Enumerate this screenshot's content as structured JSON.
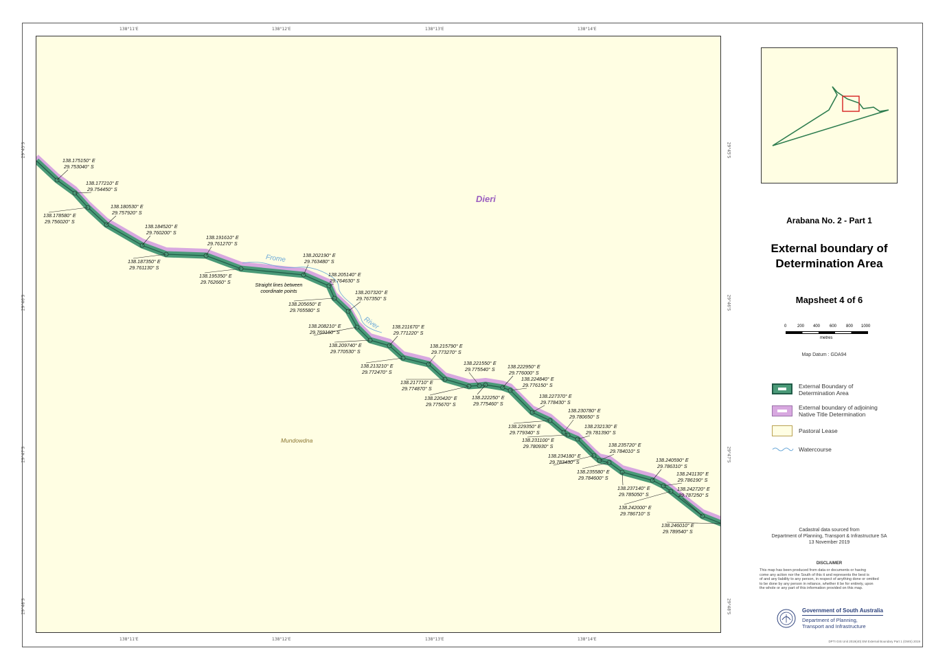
{
  "map": {
    "top_ticks": [
      "138°11'E",
      "138°12'E",
      "138°13'E",
      "138°14'E"
    ],
    "bottom_ticks": [
      "138°11'E",
      "138°12'E",
      "138°13'E",
      "138°14'E"
    ],
    "left_ticks": [
      "29°45'S",
      "29°46'S",
      "29°47'S",
      "29°48'S"
    ],
    "right_ticks": [
      "29°45'S",
      "29°46'S",
      "29°47'S",
      "29°48'S"
    ],
    "place_names": {
      "dieri": "Dieri",
      "frome": "Frome",
      "river": "River",
      "mundowdna": "Mundowdna"
    },
    "note": "Straight lines between coordinate points",
    "boundary_labels": [
      {
        "lon": "138.175150° E",
        "lat": "29.753040° S"
      },
      {
        "lon": "138.177210° E",
        "lat": "29.754450° S"
      },
      {
        "lon": "138.178580° E",
        "lat": "29.756020° S"
      },
      {
        "lon": "138.180530° E",
        "lat": "29.757920° S"
      },
      {
        "lon": "138.184520° E",
        "lat": "29.760200° S"
      },
      {
        "lon": "138.187350° E",
        "lat": "29.761130° S"
      },
      {
        "lon": "138.191610° E",
        "lat": "29.761270° S"
      },
      {
        "lon": "138.195350° E",
        "lat": "29.762660° S"
      },
      {
        "lon": "138.202190° E",
        "lat": "29.763480° S"
      },
      {
        "lon": "138.205140° E",
        "lat": "29.764630° S"
      },
      {
        "lon": "138.205650° E",
        "lat": "29.765580° S"
      },
      {
        "lon": "138.207320° E",
        "lat": "29.767350° S"
      },
      {
        "lon": "138.208210° E",
        "lat": "29.769160° S"
      },
      {
        "lon": "138.209740° E",
        "lat": "29.770530° S"
      },
      {
        "lon": "138.211670° E",
        "lat": "29.771220° S"
      },
      {
        "lon": "138.213210° E",
        "lat": "29.772470° S"
      },
      {
        "lon": "138.215790° E",
        "lat": "29.773270° S"
      },
      {
        "lon": "138.217710° E",
        "lat": "29.774870° S"
      },
      {
        "lon": "138.220420° E",
        "lat": "29.775670° S"
      },
      {
        "lon": "138.221550° E",
        "lat": "29.775540° S"
      },
      {
        "lon": "138.222250° E",
        "lat": "29.775460° S"
      },
      {
        "lon": "138.222950° E",
        "lat": "29.776000° S"
      },
      {
        "lon": "138.224840° E",
        "lat": "29.776150° S"
      },
      {
        "lon": "138.227370° E",
        "lat": "29.778430° S"
      },
      {
        "lon": "138.229350° E",
        "lat": "29.779340° S"
      },
      {
        "lon": "138.230780° E",
        "lat": "29.780650° S"
      },
      {
        "lon": "138.231100° E",
        "lat": "29.780930° S"
      },
      {
        "lon": "138.232130° E",
        "lat": "29.781390° S"
      },
      {
        "lon": "138.234180° E",
        "lat": "29.783430° S"
      },
      {
        "lon": "138.235720° E",
        "lat": "29.784010° S"
      },
      {
        "lon": "138.235580° E",
        "lat": "29.784600° S"
      },
      {
        "lon": "138.237140° E",
        "lat": "29.785050° S"
      },
      {
        "lon": "138.240590° E",
        "lat": "29.786310° S"
      },
      {
        "lon": "138.241130° E",
        "lat": "29.786190° S"
      },
      {
        "lon": "138.242000° E",
        "lat": "29.786710° S"
      },
      {
        "lon": "138.242720° E",
        "lat": "29.787250° S"
      },
      {
        "lon": "138.246010° E",
        "lat": "29.789540° S"
      }
    ]
  },
  "panel": {
    "subtitle": "Arabana No. 2 - Part 1",
    "title_line1": "External boundary of",
    "title_line2": "Determination Area",
    "mapsheet": "Mapsheet 4 of 6",
    "scale_ticks": [
      "0",
      "200",
      "400",
      "600",
      "800",
      "1000"
    ],
    "scale_units": "metres",
    "datum": "Map Datum : GDA94",
    "legend": [
      {
        "label_1": "External Boundary of",
        "label_2": "Determination Area"
      },
      {
        "label_1": "External boundary of adjoining",
        "label_2": "Native Title Determination"
      },
      {
        "label_1": "Pastoral Lease",
        "label_2": ""
      },
      {
        "label_1": "Watercourse",
        "label_2": ""
      }
    ],
    "source_1": "Cadastral data sourced from",
    "source_2": "Department of Planning, Transport & Infrastructure SA",
    "source_3": "13 November 2019",
    "disclaimer_title": "DISCLAIMER",
    "disclaimer_lines": [
      "This map has been produced from data or documents or having",
      "come any action nor the South of this it and represents the best is",
      "of and any liability to any person, in respect of anything done or omitted",
      "to be done by any person in reliance, whether it be for entirety, upon",
      "the whole or any part of this information provided on this map."
    ],
    "gov_line1": "Government of South Australia",
    "gov_line2": "Department of Planning,",
    "gov_line3": "Transport and Infrastructure",
    "footer_ref": "DPTI GIS Unit 2019(40) EM External Boundary Part 1 (GWS) 2019"
  },
  "colors": {
    "map_bg": "#fffee3",
    "boundary_green": "#4a9a78",
    "boundary_dark": "#1f5a46",
    "adjoining_purple": "#d8a8e0",
    "pastoral": "#b8a050",
    "watercourse": "#6aa8d8",
    "dieri_label": "#9b5fc0",
    "inset_box": "#d62020"
  }
}
